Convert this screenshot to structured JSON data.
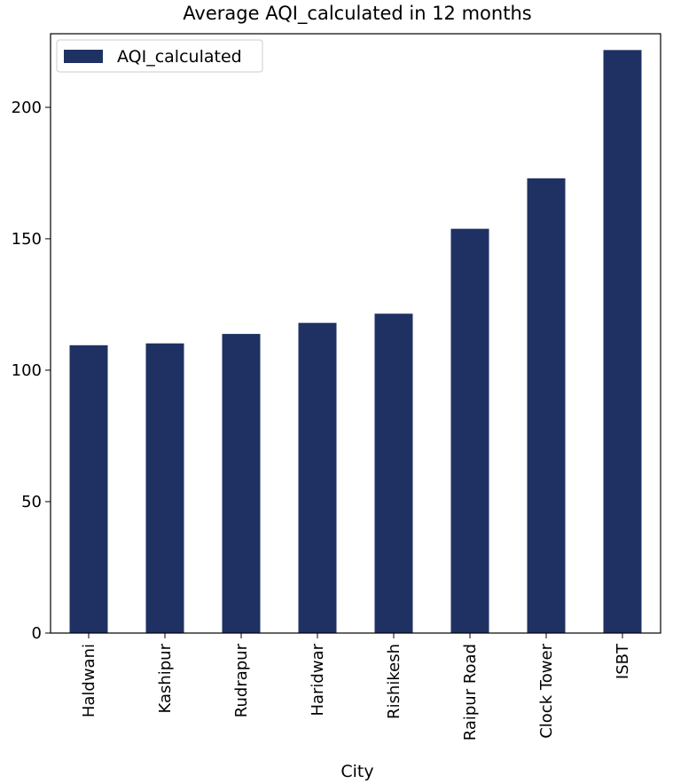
{
  "chart_data": {
    "type": "bar",
    "title": "Average AQI_calculated in 12 months",
    "xlabel": "City",
    "ylabel": "",
    "categories": [
      "Haldwani",
      "Kashipur",
      "Rudrapur",
      "Haridwar",
      "Rishikesh",
      "Raipur Road",
      "Clock Tower",
      "ISBT"
    ],
    "series": [
      {
        "name": "AQI_calculated",
        "values": [
          109.5,
          110.2,
          113.8,
          118.0,
          121.5,
          153.8,
          173.0,
          221.8
        ],
        "color": "#1f3163"
      }
    ],
    "ylim": [
      0,
      228
    ],
    "yticks": [
      0,
      50,
      100,
      150,
      200
    ],
    "legend": "top-left",
    "grid": false
  }
}
